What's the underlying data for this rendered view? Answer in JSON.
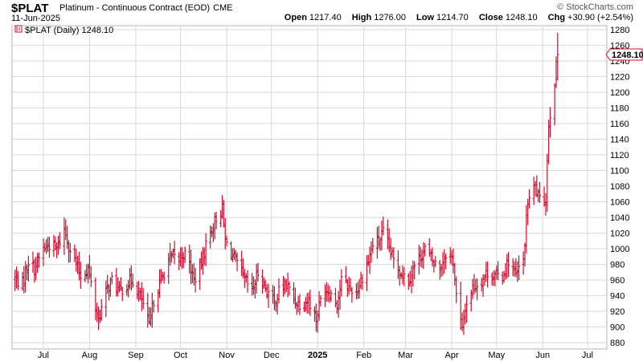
{
  "header": {
    "symbol": "$PLAT",
    "description": "Platinum - Continuous Contract (EOD)",
    "exchange": "CME",
    "brand": "© StockCharts.com",
    "date": "11-Jun-2025",
    "open_label": "Open",
    "open": "1217.40",
    "high_label": "High",
    "high": "1276.00",
    "low_label": "Low",
    "low": "1214.70",
    "close_label": "Close",
    "close": "1248.10",
    "chg_label": "Chg",
    "chg": "+30.90 (+2.54%)"
  },
  "colors": {
    "bar": "#c8102e",
    "grid": "#d9d9d9",
    "last_price_box": "#c8102e"
  },
  "chart_data": {
    "type": "ohlc-bar",
    "legend": "$PLAT (Daily) 1248.10",
    "last_price": "1248.10",
    "ylim": [
      872,
      1285
    ],
    "yticks": [
      880,
      900,
      920,
      940,
      960,
      980,
      1000,
      1020,
      1040,
      1060,
      1080,
      1100,
      1120,
      1140,
      1160,
      1180,
      1200,
      1220,
      1240,
      1260,
      1280
    ],
    "y_axis_position": "right",
    "grid": true,
    "xlabels": [
      "Jul",
      "Aug",
      "Sep",
      "Oct",
      "Nov",
      "Dec",
      "2025",
      "Feb",
      "Mar",
      "Apr",
      "May",
      "Jun",
      "Jul"
    ],
    "xlabel_bold": "2025",
    "points": [
      [
        "2024-06-12",
        962
      ],
      [
        "2024-06-17",
        955
      ],
      [
        "2024-06-21",
        985
      ],
      [
        "2024-06-25",
        975
      ],
      [
        "2024-07-01",
        1000
      ],
      [
        "2024-07-05",
        1005
      ],
      [
        "2024-07-10",
        1000
      ],
      [
        "2024-07-15",
        1025
      ],
      [
        "2024-07-18",
        1005
      ],
      [
        "2024-07-22",
        985
      ],
      [
        "2024-07-26",
        965
      ],
      [
        "2024-07-31",
        975
      ],
      [
        "2024-08-05",
        925
      ],
      [
        "2024-08-07",
        910
      ],
      [
        "2024-08-12",
        945
      ],
      [
        "2024-08-16",
        960
      ],
      [
        "2024-08-21",
        945
      ],
      [
        "2024-08-26",
        955
      ],
      [
        "2024-08-30",
        960
      ],
      [
        "2024-09-05",
        935
      ],
      [
        "2024-09-10",
        900
      ],
      [
        "2024-09-13",
        935
      ],
      [
        "2024-09-18",
        960
      ],
      [
        "2024-09-23",
        985
      ],
      [
        "2024-09-26",
        990
      ],
      [
        "2024-09-30",
        985
      ],
      [
        "2024-10-03",
        995
      ],
      [
        "2024-10-07",
        980
      ],
      [
        "2024-10-10",
        960
      ],
      [
        "2024-10-14",
        975
      ],
      [
        "2024-10-18",
        1005
      ],
      [
        "2024-10-22",
        1025
      ],
      [
        "2024-10-25",
        1040
      ],
      [
        "2024-10-29",
        1050
      ],
      [
        "2024-10-31",
        1010
      ],
      [
        "2024-11-04",
        995
      ],
      [
        "2024-11-08",
        980
      ],
      [
        "2024-11-13",
        960
      ],
      [
        "2024-11-18",
        945
      ],
      [
        "2024-11-22",
        970
      ],
      [
        "2024-11-27",
        950
      ],
      [
        "2024-12-03",
        930
      ],
      [
        "2024-12-06",
        945
      ],
      [
        "2024-12-11",
        955
      ],
      [
        "2024-12-16",
        935
      ],
      [
        "2024-12-20",
        930
      ],
      [
        "2024-12-26",
        935
      ],
      [
        "2024-12-31",
        910
      ],
      [
        "2025-01-03",
        935
      ],
      [
        "2025-01-06",
        950
      ],
      [
        "2025-01-09",
        945
      ],
      [
        "2025-01-14",
        930
      ],
      [
        "2025-01-17",
        960
      ],
      [
        "2025-01-22",
        950
      ],
      [
        "2025-01-27",
        945
      ],
      [
        "2025-01-31",
        965
      ],
      [
        "2025-02-04",
        985
      ],
      [
        "2025-02-07",
        1005
      ],
      [
        "2025-02-11",
        1010
      ],
      [
        "2025-02-14",
        1020
      ],
      [
        "2025-02-18",
        1000
      ],
      [
        "2025-02-21",
        985
      ],
      [
        "2025-02-26",
        970
      ],
      [
        "2025-03-03",
        960
      ],
      [
        "2025-03-06",
        975
      ],
      [
        "2025-03-11",
        990
      ],
      [
        "2025-03-14",
        1000
      ],
      [
        "2025-03-19",
        985
      ],
      [
        "2025-03-24",
        975
      ],
      [
        "2025-03-28",
        995
      ],
      [
        "2025-04-02",
        985
      ],
      [
        "2025-04-04",
        940
      ],
      [
        "2025-04-08",
        895
      ],
      [
        "2025-04-10",
        925
      ],
      [
        "2025-04-15",
        950
      ],
      [
        "2025-04-21",
        960
      ],
      [
        "2025-04-25",
        970
      ],
      [
        "2025-04-30",
        965
      ],
      [
        "2025-05-05",
        965
      ],
      [
        "2025-05-09",
        985
      ],
      [
        "2025-05-14",
        965
      ],
      [
        "2025-05-19",
        985
      ],
      [
        "2025-05-22",
        1060
      ],
      [
        "2025-05-27",
        1080
      ],
      [
        "2025-05-30",
        1060
      ],
      [
        "2025-06-03",
        1065
      ],
      [
        "2025-06-05",
        1160
      ],
      [
        "2025-06-09",
        1215
      ],
      [
        "2025-06-11",
        1248
      ]
    ]
  }
}
